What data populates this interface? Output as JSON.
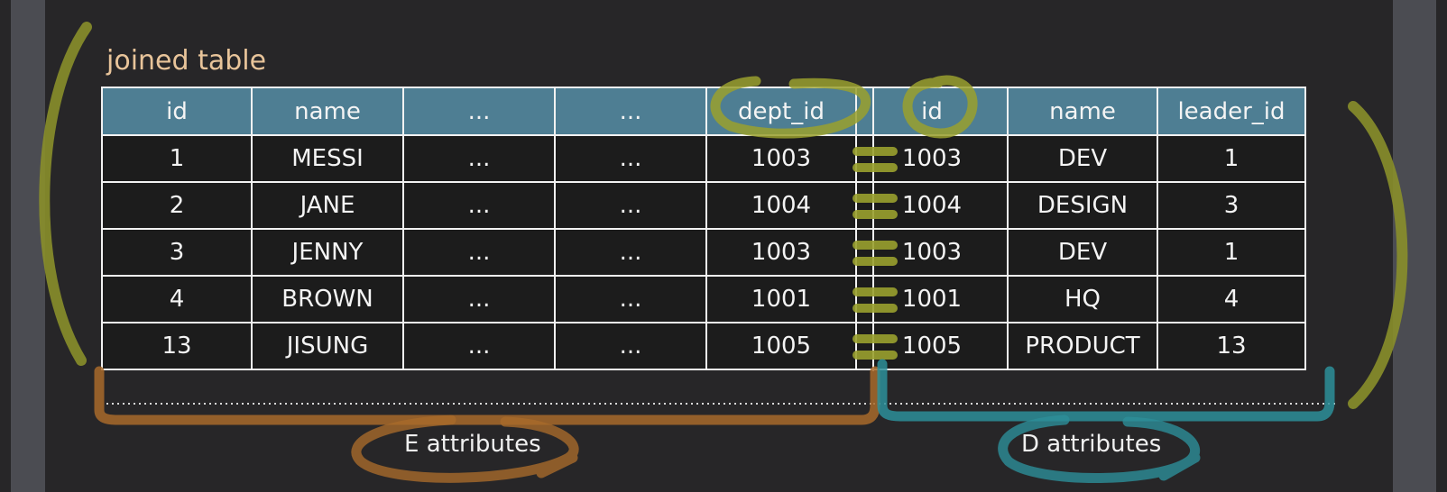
{
  "title": "joined table",
  "columns": [
    "id",
    "name",
    "...",
    "...",
    "dept_id",
    "id",
    "name",
    "leader_id"
  ],
  "rows": [
    [
      "1",
      "MESSI",
      "...",
      "...",
      "1003",
      "1003",
      "DEV",
      "1"
    ],
    [
      "2",
      "JANE",
      "...",
      "...",
      "1004",
      "1004",
      "DESIGN",
      "3"
    ],
    [
      "3",
      "JENNY",
      "...",
      "...",
      "1003",
      "1003",
      "DEV",
      "1"
    ],
    [
      "4",
      "BROWN",
      "...",
      "...",
      "1001",
      "1001",
      "HQ",
      "4"
    ],
    [
      "13",
      "JISUNG",
      "...",
      "...",
      "1005",
      "1005",
      "PRODUCT",
      "13"
    ]
  ],
  "labels": {
    "e": "E attributes",
    "d": "D attributes"
  },
  "colors": {
    "header": "#4e7e93",
    "olive": "#8a8f2a",
    "brown": "#a86a2a",
    "teal": "#2d8f99",
    "title": "#e8c49a"
  }
}
